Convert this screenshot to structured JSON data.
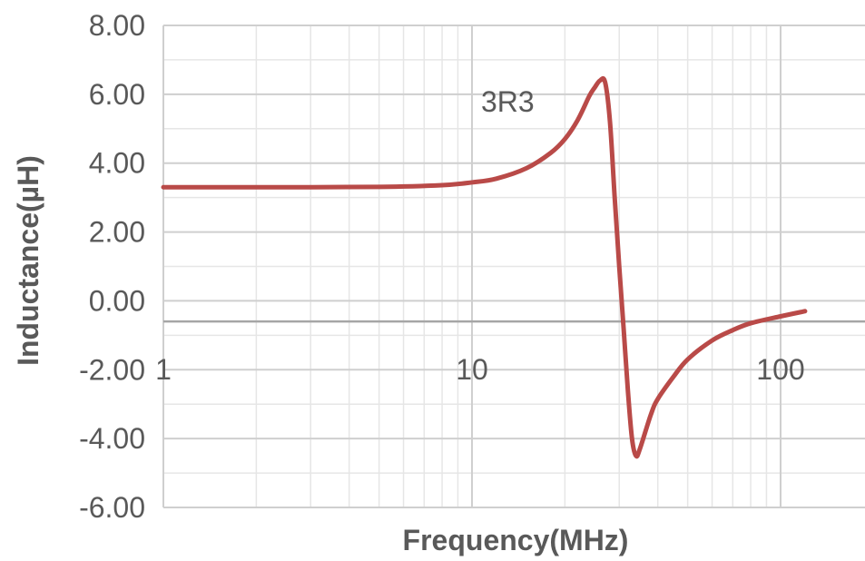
{
  "chart_data": {
    "type": "line",
    "xscale": "log",
    "xlim": [
      1,
      120
    ],
    "ylim": [
      -6,
      8
    ],
    "yticks": [
      8,
      6,
      4,
      2,
      0,
      -2,
      -4,
      -6
    ],
    "ytick_labels": [
      "8.00",
      "6.00",
      "4.00",
      "2.00",
      "0.00",
      "-2.00",
      "-4.00",
      "-6.00"
    ],
    "xticks": [
      1,
      10,
      100
    ],
    "xtick_labels": [
      "1",
      "10",
      "100"
    ],
    "xlabel": "Frequency(MHz)",
    "ylabel": "Inductance(µH)",
    "grid": true,
    "x_axis_crosses_y": -0.6,
    "series": [
      {
        "name": "3R3",
        "color": "#b94a48",
        "x": [
          1,
          2,
          5,
          8,
          10,
          12,
          15,
          18,
          20,
          22,
          24,
          25,
          26,
          27,
          28,
          29,
          30,
          31,
          32,
          33,
          34,
          35,
          38,
          40,
          45,
          50,
          60,
          70,
          80,
          100,
          120
        ],
        "y": [
          3.3,
          3.3,
          3.31,
          3.36,
          3.44,
          3.55,
          3.85,
          4.3,
          4.7,
          5.25,
          5.95,
          6.2,
          6.4,
          6.35,
          5.2,
          3.0,
          1.0,
          -0.8,
          -2.6,
          -4.0,
          -4.5,
          -4.3,
          -3.3,
          -2.85,
          -2.2,
          -1.7,
          -1.15,
          -0.85,
          -0.65,
          -0.45,
          -0.3
        ]
      }
    ],
    "annotation": "3R3"
  }
}
